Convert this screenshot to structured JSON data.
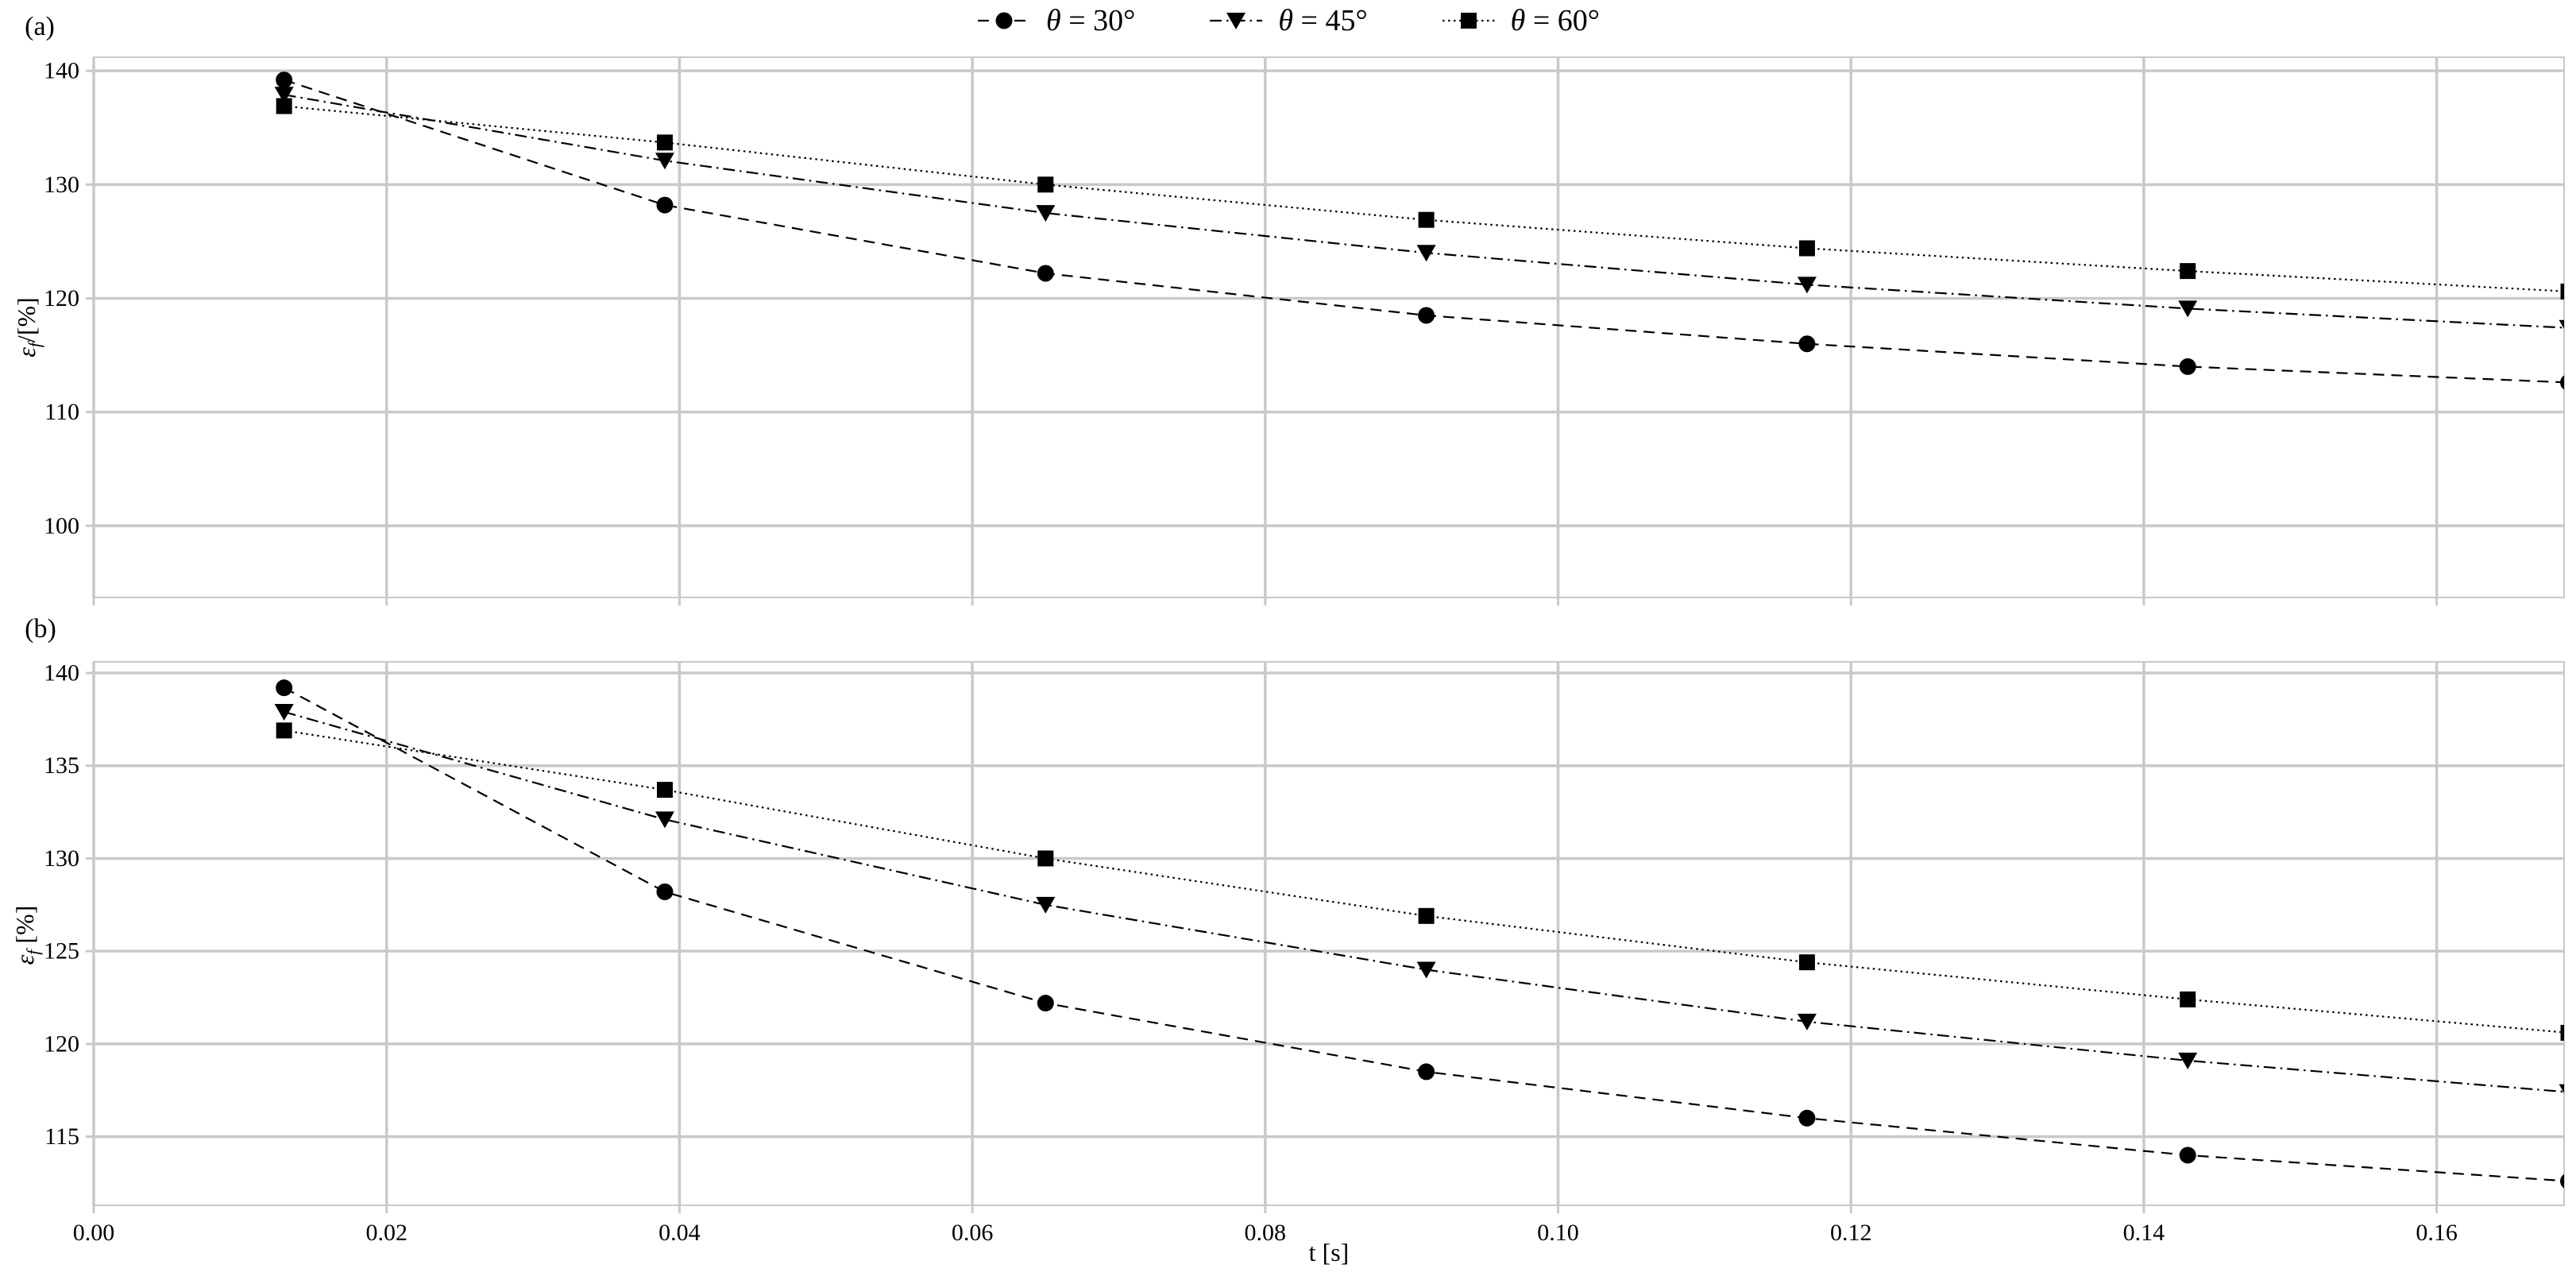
{
  "figure": {
    "background": "#ffffff",
    "xlabel": "t [s]"
  },
  "legend": {
    "items": [
      {
        "label": "θ = 30°",
        "marker": "circle",
        "linestyle": "dashed"
      },
      {
        "label": "θ = 45°",
        "marker": "triangle-down",
        "linestyle": "dashdot"
      },
      {
        "label": "θ = 60°",
        "marker": "square",
        "linestyle": "dotted"
      }
    ]
  },
  "charts": [
    {
      "panel_label": "(a)",
      "ylabel_symbol": "ε",
      "ylabel_sub": "f",
      "ylabel_rest": "/[%]",
      "yticks": [
        100,
        110,
        120,
        130,
        140
      ],
      "ylim": [
        93.7,
        141.2
      ],
      "show_x_tick_labels": false
    },
    {
      "panel_label": "(b)",
      "ylabel_symbol": "ε",
      "ylabel_sub": "f",
      "ylabel_rest": " [%]",
      "yticks": [
        115,
        120,
        125,
        130,
        135,
        140
      ],
      "ylim": [
        111.3,
        140.6
      ],
      "show_x_tick_labels": true
    }
  ],
  "chart_data": {
    "type": "line",
    "xlabel": "t [s]",
    "x": [
      0.013,
      0.039,
      0.065,
      0.091,
      0.117,
      0.143,
      0.169
    ],
    "xlim": [
      0.0,
      0.1687
    ],
    "xticks": [
      0.0,
      0.02,
      0.04,
      0.06,
      0.08,
      0.1,
      0.12,
      0.14,
      0.16
    ],
    "xtick_labels": [
      "0.00",
      "0.02",
      "0.04",
      "0.06",
      "0.08",
      "0.10",
      "0.12",
      "0.14",
      "0.16"
    ],
    "grid": true,
    "legend_position": "top-center",
    "series": [
      {
        "name": "θ = 30°",
        "marker": "circle",
        "linestyle": "dashed",
        "values": [
          139.2,
          128.2,
          122.2,
          118.5,
          116.0,
          114.0,
          112.6
        ]
      },
      {
        "name": "θ = 45°",
        "marker": "triangle-down",
        "linestyle": "dashdot",
        "values": [
          137.9,
          132.1,
          127.5,
          124.0,
          121.2,
          119.1,
          117.4
        ]
      },
      {
        "name": "θ = 60°",
        "marker": "square",
        "linestyle": "dotted",
        "values": [
          136.9,
          133.7,
          130.0,
          126.9,
          124.4,
          122.4,
          120.6
        ]
      }
    ],
    "colors": {
      "series": "#000000",
      "grid": "#c9c9c9",
      "spine": "#c9c9c9",
      "text": "#000000"
    }
  }
}
